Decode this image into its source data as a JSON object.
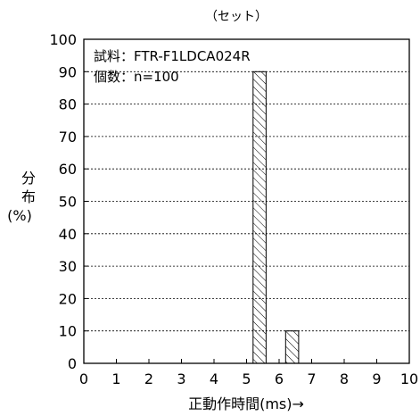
{
  "chart_data": {
    "type": "bar",
    "title": "（セット）",
    "annotations": [
      "試料：FTR-F1LDCA024R",
      "個数：n=100"
    ],
    "ylabel": [
      "分",
      "布",
      "(%)"
    ],
    "xlabel": "正動作時間(ms)→",
    "xlim": [
      0,
      10
    ],
    "ylim": [
      0,
      100
    ],
    "x_ticks": [
      "0",
      "1",
      "2",
      "3",
      "4",
      "5",
      "6",
      "7",
      "8",
      "9",
      "10"
    ],
    "y_ticks": [
      "0",
      "10",
      "20",
      "30",
      "40",
      "50",
      "60",
      "70",
      "80",
      "90",
      "100"
    ],
    "grid": "horizontal dashed",
    "bar_fill": "diagonal hatch",
    "bars": [
      {
        "x_start": 5.2,
        "x_end": 5.6,
        "value": 90
      },
      {
        "x_start": 6.2,
        "x_end": 6.6,
        "value": 10
      }
    ]
  }
}
